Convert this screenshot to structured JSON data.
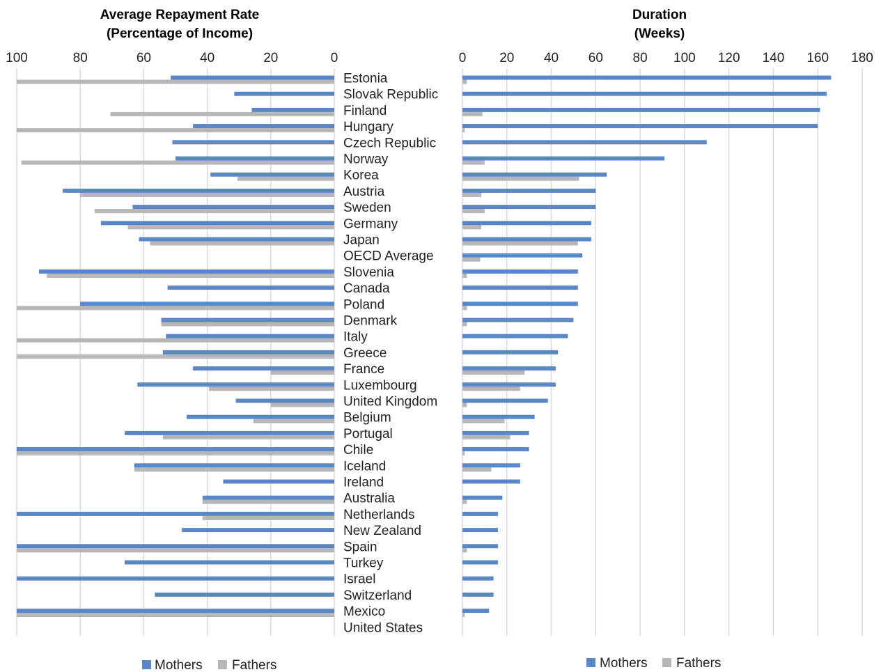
{
  "chart_data": [
    {
      "type": "bar",
      "orientation": "horizontal",
      "direction": "reversed",
      "title": [
        "Average Repayment Rate",
        "(Percentage of Income)"
      ],
      "xlim": [
        0,
        100
      ],
      "ticks": [
        "100",
        "80",
        "60",
        "40",
        "20",
        "0"
      ],
      "grid": true,
      "legend": "bottom",
      "categories": [
        "Estonia",
        "Slovak Republic",
        "Finland",
        "Hungary",
        "Czech Republic",
        "Norway",
        "Korea",
        "Austria",
        "Sweden",
        "Germany",
        "Japan",
        "OECD Average",
        "Slovenia",
        "Canada",
        "Poland",
        "Denmark",
        "Italy",
        "Greece",
        "France",
        "Luxembourg",
        "United Kingdom",
        "Belgium",
        "Portugal",
        "Chile",
        "Iceland",
        "Ireland",
        "Australia",
        "Netherlands",
        "New Zealand",
        "Spain",
        "Turkey",
        "Israel",
        "Switzerland",
        "Mexico",
        "United States"
      ],
      "series": [
        {
          "name": "Mothers",
          "color": "#5b87c7",
          "values": [
            51.5,
            31.5,
            26,
            44.5,
            51,
            50,
            39,
            85.5,
            63.5,
            73.5,
            61.5,
            null,
            93,
            52.5,
            80,
            54.5,
            53,
            54,
            44.5,
            62,
            31,
            46.5,
            66,
            100,
            63,
            35,
            41.5,
            100,
            48,
            100,
            66,
            100,
            56.5,
            100,
            null
          ]
        },
        {
          "name": "Fathers",
          "color": "#b7b7b7",
          "values": [
            100,
            null,
            70.5,
            100,
            null,
            98.5,
            30.5,
            80,
            75.5,
            65,
            58,
            null,
            90.5,
            null,
            100,
            54.5,
            100,
            100,
            20,
            39.5,
            20,
            25.5,
            54,
            100,
            63,
            null,
            41.5,
            41.5,
            null,
            100,
            null,
            null,
            null,
            100,
            null
          ]
        }
      ]
    },
    {
      "type": "bar",
      "orientation": "horizontal",
      "title": [
        "Duration",
        "(Weeks)"
      ],
      "xlim": [
        0,
        180
      ],
      "ticks": [
        "0",
        "20",
        "40",
        "60",
        "80",
        "100",
        "120",
        "140",
        "160",
        "180"
      ],
      "grid": true,
      "legend": "bottom",
      "series": [
        {
          "name": "Mothers",
          "color": "#5b87c7",
          "values": [
            166,
            164,
            161,
            160,
            110,
            91,
            65,
            60,
            60,
            58,
            58,
            54,
            52,
            52,
            52,
            50,
            47.5,
            43,
            42,
            42,
            38.5,
            32.5,
            30,
            30,
            26,
            26,
            18,
            16,
            16,
            16,
            16,
            14,
            14,
            12,
            null
          ]
        },
        {
          "name": "Fathers",
          "color": "#b7b7b7",
          "values": [
            2,
            null,
            9,
            1,
            null,
            10,
            52.5,
            8.5,
            10,
            8.5,
            52,
            8,
            2,
            null,
            2,
            2,
            null,
            null,
            28,
            26,
            2,
            19,
            21.5,
            1,
            13,
            null,
            2,
            null,
            null,
            2,
            null,
            null,
            null,
            1,
            null
          ]
        }
      ]
    }
  ]
}
